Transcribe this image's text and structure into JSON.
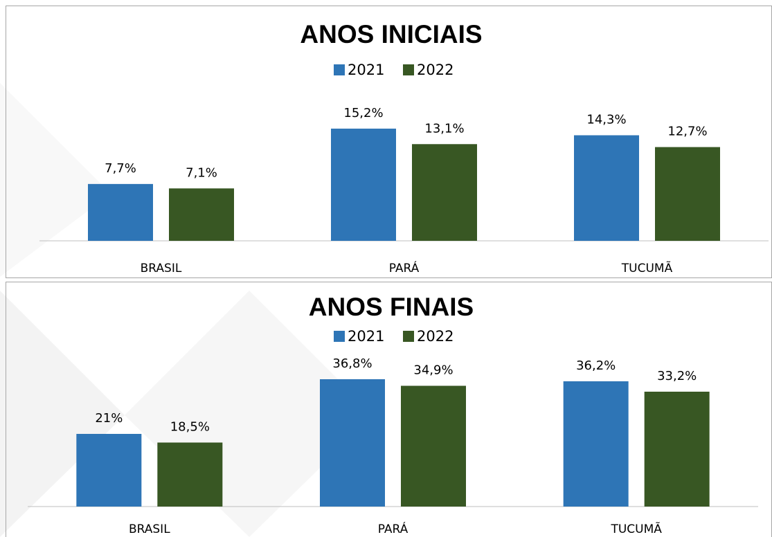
{
  "chart_data": [
    {
      "type": "bar",
      "title": "ANOS INICIAIS",
      "categories": [
        "BRASIL",
        "PARÁ",
        "TUCUMÃ"
      ],
      "series": [
        {
          "name": "2021",
          "color": "#2e75b6",
          "values": [
            7.7,
            15.2,
            14.3
          ],
          "value_labels": [
            "7,7%",
            "15,2%",
            "14,3%"
          ]
        },
        {
          "name": "2022",
          "color": "#385723",
          "values": [
            7.1,
            13.1,
            12.7
          ],
          "value_labels": [
            "7,1%",
            "13,1%",
            "12,7%"
          ]
        }
      ],
      "ylim": [
        0,
        18
      ],
      "legend": "top"
    },
    {
      "type": "bar",
      "title": "ANOS FINAIS",
      "categories": [
        "BRASIL",
        "PARÁ",
        "TUCUMÃ"
      ],
      "series": [
        {
          "name": "2021",
          "color": "#2e75b6",
          "values": [
            21,
            36.8,
            36.2
          ],
          "value_labels": [
            "21%",
            "36,8%",
            "36,2%"
          ]
        },
        {
          "name": "2022",
          "color": "#385723",
          "values": [
            18.5,
            34.9,
            33.2
          ],
          "value_labels": [
            "18,5%",
            "34,9%",
            "33,2%"
          ]
        }
      ],
      "ylim": [
        0,
        40
      ],
      "legend": "top"
    }
  ]
}
